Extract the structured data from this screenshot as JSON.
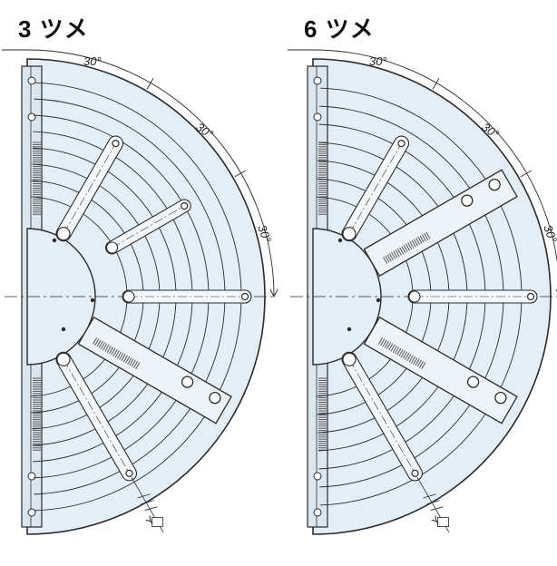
{
  "panels": [
    {
      "title": "3 ツメ",
      "angle_labels": [
        "30°",
        "30°",
        "30°"
      ],
      "dimension_label": "Y"
    },
    {
      "title": "6 ツメ",
      "angle_labels": [
        "30°",
        "30°",
        "30°"
      ],
      "dimension_label": "Y"
    }
  ],
  "colors": {
    "face": "#e4eef7",
    "line": "#2b2b2b",
    "serration": "#555555"
  }
}
